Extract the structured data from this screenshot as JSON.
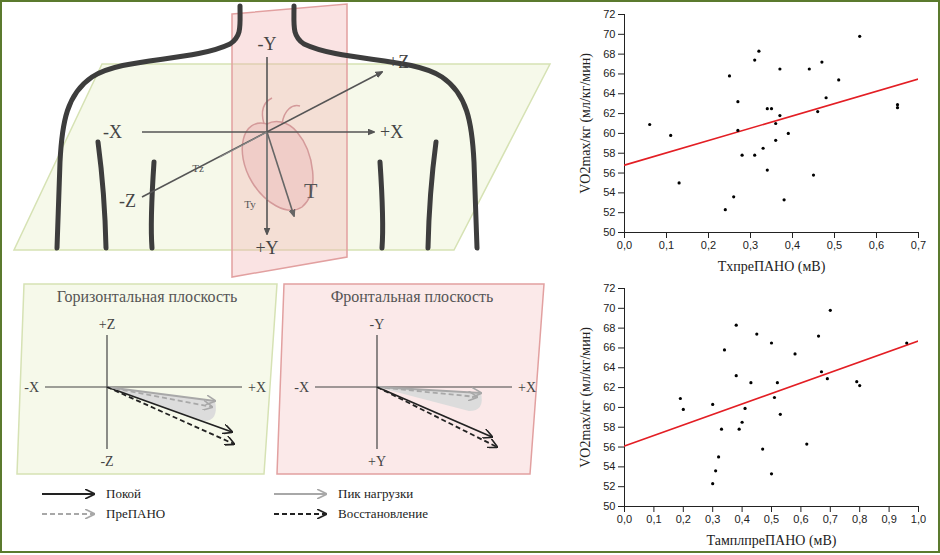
{
  "chart_data": [
    {
      "type": "scatter",
      "x_label": "TxпреПАНО (мВ)",
      "y_label": "VO2max/кг (мл/кг/мин)",
      "x": [
        0.06,
        0.11,
        0.13,
        0.24,
        0.25,
        0.26,
        0.27,
        0.27,
        0.28,
        0.31,
        0.31,
        0.32,
        0.33,
        0.34,
        0.34,
        0.35,
        0.36,
        0.36,
        0.37,
        0.37,
        0.38,
        0.39,
        0.44,
        0.45,
        0.46,
        0.47,
        0.48,
        0.51,
        0.56,
        0.65,
        0.65
      ],
      "values": [
        60.9,
        59.8,
        55.0,
        52.3,
        65.8,
        53.6,
        63.2,
        60.3,
        57.8,
        57.8,
        67.4,
        68.3,
        58.5,
        56.3,
        62.5,
        62.5,
        59.3,
        61.0,
        66.5,
        61.8,
        53.3,
        60.0,
        66.5,
        55.8,
        62.2,
        67.2,
        63.6,
        65.4,
        69.8,
        62.9,
        62.6
      ],
      "color": "#000000",
      "marker": "dot",
      "fit": {
        "x": [
          0.0,
          0.7
        ],
        "values": [
          56.8,
          65.5
        ],
        "color": "#e31e24"
      },
      "xlim": [
        0,
        0.7
      ],
      "xticks": [
        {
          "value": 0,
          "label": "0,0"
        },
        {
          "value": 0.1,
          "label": "0,1"
        },
        {
          "value": 0.2,
          "label": "0,2"
        },
        {
          "value": 0.3,
          "label": "0,3"
        },
        {
          "value": 0.4,
          "label": "0,4"
        },
        {
          "value": 0.5,
          "label": "0,5"
        },
        {
          "value": 0.6,
          "label": "0,6"
        },
        {
          "value": 0.7,
          "label": "0,7"
        }
      ],
      "ylim": [
        50,
        72
      ],
      "yticks": [
        50,
        52,
        54,
        56,
        58,
        60,
        62,
        64,
        66,
        68,
        70,
        72
      ],
      "grid": false
    },
    {
      "type": "scatter",
      "x_label": "ТамплпреПАНО (мВ)",
      "y_label": "VO2max/кг (мл/кг/мин)",
      "x": [
        0.19,
        0.2,
        0.3,
        0.3,
        0.31,
        0.32,
        0.33,
        0.34,
        0.38,
        0.38,
        0.39,
        0.4,
        0.41,
        0.43,
        0.45,
        0.47,
        0.5,
        0.5,
        0.51,
        0.52,
        0.53,
        0.58,
        0.62,
        0.66,
        0.67,
        0.69,
        0.7,
        0.79,
        0.8,
        0.96
      ],
      "values": [
        60.9,
        59.8,
        60.3,
        52.3,
        53.6,
        55.0,
        57.8,
        65.8,
        68.3,
        63.2,
        57.8,
        58.5,
        59.9,
        62.5,
        67.4,
        55.8,
        66.5,
        53.3,
        61.0,
        62.5,
        59.3,
        65.4,
        56.3,
        67.2,
        63.6,
        62.9,
        69.8,
        62.6,
        62.2,
        66.5
      ],
      "color": "#000000",
      "marker": "dot",
      "fit": {
        "x": [
          0.0,
          1.0
        ],
        "values": [
          56.1,
          66.7
        ],
        "color": "#e31e24"
      },
      "xlim": [
        0,
        1.0
      ],
      "xticks": [
        {
          "value": 0,
          "label": "0,0"
        },
        {
          "value": 0.1,
          "label": "0,1"
        },
        {
          "value": 0.2,
          "label": "0,2"
        },
        {
          "value": 0.3,
          "label": "0,3"
        },
        {
          "value": 0.4,
          "label": "0,4"
        },
        {
          "value": 0.5,
          "label": "0,5"
        },
        {
          "value": 0.6,
          "label": "0,6"
        },
        {
          "value": 0.7,
          "label": "0,7"
        },
        {
          "value": 0.8,
          "label": "0,8"
        },
        {
          "value": 0.9,
          "label": "0,9"
        },
        {
          "value": 1.0,
          "label": "1,0"
        }
      ],
      "ylim": [
        50,
        72
      ],
      "yticks": [
        50,
        52,
        54,
        56,
        58,
        60,
        62,
        64,
        66,
        68,
        70,
        72
      ],
      "grid": false
    }
  ],
  "diagram": {
    "axis_labels": {
      "minus_y": "-Y",
      "plus_y": "+Y",
      "minus_x": "-X",
      "plus_x": "+X",
      "plus_z": "+Z",
      "minus_z": "-Z"
    },
    "vector_labels": {
      "tz": "Tz",
      "ty": "Ty",
      "t": "T"
    },
    "panels": [
      {
        "title": "Горизонтальная плоскость",
        "axis_labels": {
          "up": "+Z",
          "down": "-Z",
          "left": "-X",
          "right": "+X"
        }
      },
      {
        "title": "Фронтальная плоскость",
        "axis_labels": {
          "up": "-Y",
          "down": "+Y",
          "left": "-X",
          "right": "+X"
        }
      }
    ],
    "legend": [
      {
        "label": "Покой",
        "color": "#222222",
        "line_style": "solid"
      },
      {
        "label": "ПреПАНО",
        "color": "#a8a8a8",
        "line_style": "dashed"
      },
      {
        "label": "Пик нагрузки",
        "color": "#a8a8a8",
        "line_style": "solid"
      },
      {
        "label": "Восстановление",
        "color": "#222222",
        "line_style": "dashed"
      }
    ]
  }
}
